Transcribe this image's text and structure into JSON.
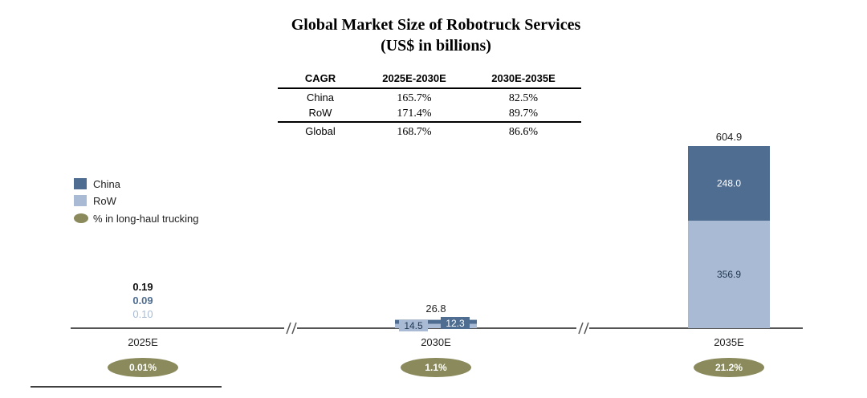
{
  "chart_data": {
    "type": "bar",
    "stacked": true,
    "title": "Global Market Size of Robotruck Services",
    "subtitle": "(US$ in billions)",
    "categories": [
      "2025E",
      "2030E",
      "2035E"
    ],
    "series": [
      {
        "name": "China",
        "color": "#4f6d91",
        "values": [
          0.09,
          12.3,
          248.0
        ],
        "labels": [
          "0.09",
          "12.3",
          "248.0"
        ]
      },
      {
        "name": "RoW",
        "color": "#a9bbd4",
        "values": [
          0.1,
          14.5,
          356.9
        ],
        "labels": [
          "0.10",
          "14.5",
          "356.9"
        ]
      }
    ],
    "totals": [
      0.19,
      26.8,
      604.9
    ],
    "total_labels": [
      "0.19",
      "26.8",
      "604.9"
    ],
    "long_haul_share": {
      "name": "% in long-haul trucking",
      "color": "#8a8a5c",
      "values": [
        "0.01%",
        "1.1%",
        "21.2%"
      ]
    },
    "legend_position": "left",
    "axis_break": true,
    "cagr_table": {
      "headers": [
        "CAGR",
        "2025E-2030E",
        "2030E-2035E"
      ],
      "rows": [
        [
          "China",
          "165.7%",
          "82.5%"
        ],
        [
          "RoW",
          "171.4%",
          "89.7%"
        ],
        [
          "Global",
          "168.7%",
          "86.6%"
        ]
      ]
    }
  }
}
